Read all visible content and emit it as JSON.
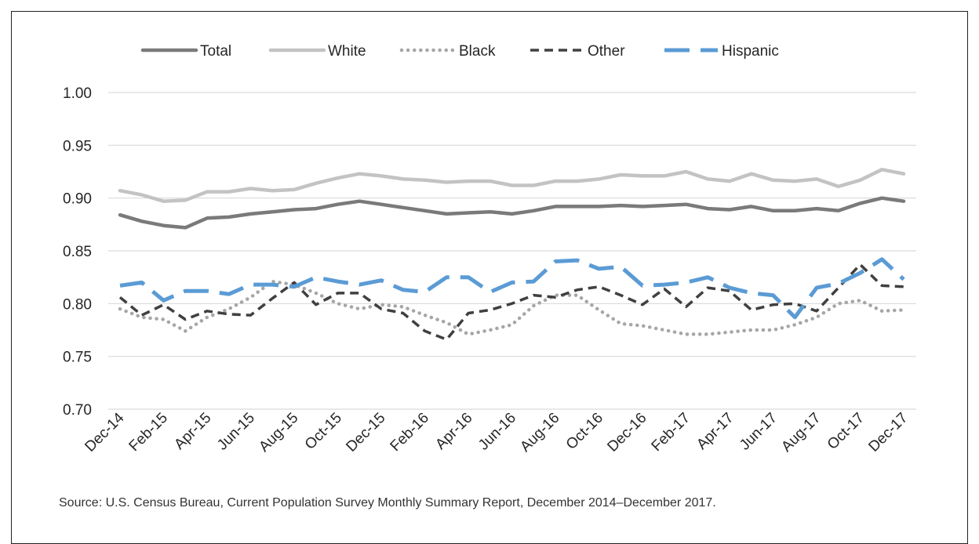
{
  "chart_data": {
    "type": "line",
    "title": "",
    "xlabel": "",
    "ylabel": "",
    "ylim": [
      0.7,
      1.0
    ],
    "yticks": [
      "0.70",
      "0.75",
      "0.80",
      "0.85",
      "0.90",
      "0.95",
      "1.00"
    ],
    "x": [
      "Dec-14",
      "Jan-15",
      "Feb-15",
      "Mar-15",
      "Apr-15",
      "May-15",
      "Jun-15",
      "Jul-15",
      "Aug-15",
      "Sep-15",
      "Oct-15",
      "Nov-15",
      "Dec-15",
      "Jan-16",
      "Feb-16",
      "Mar-16",
      "Apr-16",
      "May-16",
      "Jun-16",
      "Jul-16",
      "Aug-16",
      "Sep-16",
      "Oct-16",
      "Nov-16",
      "Dec-16",
      "Jan-17",
      "Feb-17",
      "Mar-17",
      "Apr-17",
      "May-17",
      "Jun-17",
      "Jul-17",
      "Aug-17",
      "Sep-17",
      "Oct-17",
      "Nov-17",
      "Dec-17"
    ],
    "xtick_labels": [
      "Dec-14",
      "Feb-15",
      "Apr-15",
      "Jun-15",
      "Aug-15",
      "Oct-15",
      "Dec-15",
      "Feb-16",
      "Apr-16",
      "Jun-16",
      "Aug-16",
      "Oct-16",
      "Dec-16",
      "Feb-17",
      "Apr-17",
      "Jun-17",
      "Aug-17",
      "Oct-17",
      "Dec-17"
    ],
    "grid": true,
    "legend_position": "top",
    "series": [
      {
        "name": "Total",
        "color": "#7a7a7a",
        "style": "solid",
        "values": [
          0.884,
          0.878,
          0.874,
          0.872,
          0.881,
          0.882,
          0.885,
          0.887,
          0.889,
          0.89,
          0.894,
          0.897,
          0.894,
          0.891,
          0.888,
          0.885,
          0.886,
          0.887,
          0.885,
          0.888,
          0.892,
          0.892,
          0.892,
          0.893,
          0.892,
          0.893,
          0.894,
          0.89,
          0.889,
          0.892,
          0.888,
          0.888,
          0.89,
          0.888,
          0.895,
          0.9,
          0.897
        ]
      },
      {
        "name": "White",
        "color": "#c3c3c3",
        "style": "solid",
        "values": [
          0.907,
          0.903,
          0.897,
          0.898,
          0.906,
          0.906,
          0.909,
          0.907,
          0.908,
          0.914,
          0.919,
          0.923,
          0.921,
          0.918,
          0.917,
          0.915,
          0.916,
          0.916,
          0.912,
          0.912,
          0.916,
          0.916,
          0.918,
          0.922,
          0.921,
          0.921,
          0.925,
          0.918,
          0.916,
          0.923,
          0.917,
          0.916,
          0.918,
          0.911,
          0.917,
          0.927,
          0.923
        ]
      },
      {
        "name": "Black",
        "color": "#a6a6a6",
        "style": "dotted",
        "values": [
          0.795,
          0.787,
          0.785,
          0.774,
          0.787,
          0.795,
          0.806,
          0.821,
          0.818,
          0.81,
          0.8,
          0.795,
          0.799,
          0.797,
          0.789,
          0.782,
          0.771,
          0.775,
          0.78,
          0.798,
          0.808,
          0.808,
          0.794,
          0.781,
          0.779,
          0.775,
          0.771,
          0.771,
          0.773,
          0.775,
          0.775,
          0.78,
          0.787,
          0.8,
          0.803,
          0.793,
          0.794
        ]
      },
      {
        "name": "Other",
        "color": "#404040",
        "style": "dashed",
        "values": [
          0.806,
          0.789,
          0.799,
          0.785,
          0.793,
          0.79,
          0.789,
          0.805,
          0.82,
          0.799,
          0.81,
          0.81,
          0.795,
          0.791,
          0.774,
          0.766,
          0.791,
          0.794,
          0.8,
          0.808,
          0.806,
          0.813,
          0.816,
          0.808,
          0.799,
          0.814,
          0.797,
          0.815,
          0.812,
          0.794,
          0.799,
          0.8,
          0.793,
          0.815,
          0.837,
          0.817,
          0.816
        ]
      },
      {
        "name": "Hispanic",
        "color": "#5b9bd5",
        "style": "longdash",
        "values": [
          0.817,
          0.82,
          0.803,
          0.812,
          0.812,
          0.809,
          0.818,
          0.818,
          0.816,
          0.825,
          0.821,
          0.818,
          0.822,
          0.813,
          0.811,
          0.825,
          0.825,
          0.811,
          0.82,
          0.821,
          0.84,
          0.841,
          0.833,
          0.835,
          0.817,
          0.818,
          0.82,
          0.825,
          0.815,
          0.81,
          0.808,
          0.787,
          0.815,
          0.819,
          0.829,
          0.842,
          0.823
        ]
      }
    ]
  },
  "source_note": "Source: U.S. Census Bureau, Current Population Survey Monthly Summary Report, December 2014–December 2017."
}
